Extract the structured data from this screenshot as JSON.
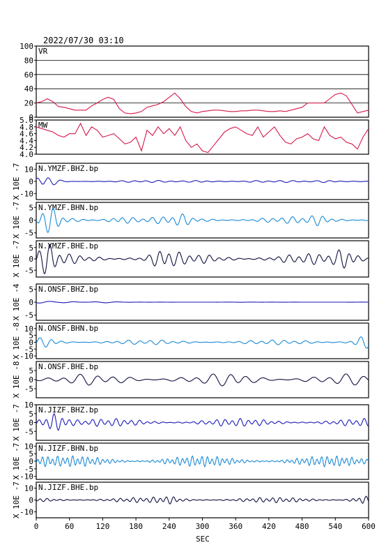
{
  "header": {
    "timestamp": "2022/07/30 03:10"
  },
  "colors": {
    "vr": "#d6184a",
    "mw": "#d6184a",
    "z_trace": "#1a1ab8",
    "h_trace": "#1a8ad6",
    "e_trace": "#101040",
    "axis": "#000000",
    "grid": "#000000"
  },
  "chart_data": {
    "type": "line",
    "xlabel": "SEC",
    "xlim": [
      0,
      600
    ],
    "x_ticks": [
      "0",
      "60",
      "120",
      "180",
      "240",
      "300",
      "360",
      "420",
      "480",
      "540",
      "600"
    ],
    "panels": [
      {
        "id": "vr",
        "label": "VR",
        "ylabel": "",
        "ylim": [
          0,
          100
        ],
        "y_ticks": [
          "0",
          "20",
          "40",
          "60",
          "80",
          "100"
        ],
        "grid": true,
        "color_key": "vr",
        "x": [
          0,
          10,
          20,
          30,
          40,
          50,
          60,
          70,
          80,
          90,
          100,
          110,
          120,
          130,
          140,
          150,
          160,
          170,
          180,
          190,
          200,
          210,
          220,
          230,
          240,
          250,
          260,
          270,
          280,
          290,
          300,
          310,
          320,
          330,
          340,
          350,
          360,
          370,
          380,
          390,
          400,
          410,
          420,
          430,
          440,
          450,
          460,
          470,
          480,
          490,
          500,
          510,
          520,
          530,
          540,
          550,
          560,
          570,
          580,
          590,
          600
        ],
        "values": [
          20,
          22,
          26,
          22,
          15,
          14,
          12,
          10,
          10,
          10,
          16,
          20,
          25,
          28,
          25,
          12,
          6,
          5,
          6,
          8,
          14,
          16,
          18,
          22,
          28,
          34,
          26,
          15,
          8,
          6,
          8,
          9,
          10,
          10,
          9,
          8,
          8,
          9,
          9,
          10,
          10,
          9,
          8,
          8,
          9,
          8,
          10,
          12,
          14,
          20,
          20,
          20,
          20,
          26,
          32,
          34,
          30,
          18,
          6,
          8,
          10
        ]
      },
      {
        "id": "mw",
        "label": "MW",
        "ylabel": "",
        "ylim": [
          4.0,
          5.0
        ],
        "y_ticks": [
          "4.0",
          "4.2",
          "4.4",
          "4.6",
          "4.8",
          "5.0"
        ],
        "grid": false,
        "color_key": "mw",
        "x": [
          0,
          10,
          20,
          30,
          40,
          50,
          60,
          70,
          80,
          90,
          100,
          110,
          120,
          130,
          140,
          150,
          160,
          170,
          180,
          190,
          200,
          210,
          220,
          230,
          240,
          250,
          260,
          270,
          280,
          290,
          300,
          310,
          320,
          330,
          340,
          350,
          360,
          370,
          380,
          390,
          400,
          410,
          420,
          430,
          440,
          450,
          460,
          470,
          480,
          490,
          500,
          510,
          520,
          530,
          540,
          550,
          560,
          570,
          580,
          590,
          600
        ],
        "values": [
          4.8,
          4.75,
          4.7,
          4.65,
          4.55,
          4.5,
          4.6,
          4.6,
          4.9,
          4.55,
          4.8,
          4.7,
          4.5,
          4.55,
          4.6,
          4.45,
          4.3,
          4.35,
          4.5,
          4.1,
          4.7,
          4.55,
          4.8,
          4.6,
          4.75,
          4.55,
          4.8,
          4.4,
          4.2,
          4.3,
          4.1,
          4.05,
          4.25,
          4.45,
          4.65,
          4.75,
          4.8,
          4.7,
          4.6,
          4.55,
          4.8,
          4.5,
          4.65,
          4.8,
          4.55,
          4.35,
          4.3,
          4.45,
          4.5,
          4.6,
          4.45,
          4.4,
          4.8,
          4.55,
          4.45,
          4.5,
          4.35,
          4.3,
          4.15,
          4.5,
          4.75
        ]
      },
      {
        "id": "ymzf_bhz",
        "label": "N.YMZF.BHZ.bp",
        "ylabel": "X 10E -7",
        "ylim": [
          -15,
          15
        ],
        "y_ticks": [
          "10",
          "0",
          "-10"
        ],
        "tick_values": [
          10,
          0,
          -10
        ],
        "grid": false,
        "color_key": "z_trace",
        "trace": {
          "base_amp": 0.8,
          "period_s": 22,
          "bursts": [
            [
              15,
              4.5
            ],
            [
              300,
              0.8
            ],
            [
              530,
              0.8
            ]
          ],
          "seed": 3
        }
      },
      {
        "id": "ymzf_bhn",
        "label": "N.YMZF.BHN.bp",
        "ylabel": "X 10E -7",
        "ylim": [
          -7,
          7
        ],
        "y_ticks": [
          "5",
          "0",
          "-5"
        ],
        "tick_values": [
          5,
          0,
          -5
        ],
        "grid": false,
        "color_key": "h_trace",
        "trace": {
          "base_amp": 1.2,
          "period_s": 18,
          "bursts": [
            [
              25,
              3.5
            ],
            [
              150,
              1.0
            ],
            [
              260,
              1.2
            ],
            [
              510,
              1.0
            ]
          ],
          "seed": 7
        }
      },
      {
        "id": "ymzf_bhe",
        "label": "N.YMZF.BHE.bp",
        "ylabel": "X 10E -7",
        "ylim": [
          -8,
          8
        ],
        "y_ticks": [
          "5",
          "0",
          "-5"
        ],
        "tick_values": [
          5,
          0,
          -5
        ],
        "grid": false,
        "color_key": "e_trace",
        "trace": {
          "base_amp": 2.2,
          "period_s": 18,
          "bursts": [
            [
              20,
              4.0
            ],
            [
              230,
              2.5
            ],
            [
              560,
              3.0
            ]
          ],
          "seed": 11
        }
      },
      {
        "id": "onsf_bhz",
        "label": "N.ONSF.BHZ.bp",
        "ylabel": "X 10E -4",
        "ylim": [
          -7,
          7
        ],
        "y_ticks": [
          "5",
          "0",
          "-5"
        ],
        "tick_values": [
          5,
          0,
          -5
        ],
        "grid": false,
        "color_key": "z_trace",
        "trace": {
          "base_amp": 0.05,
          "period_s": 40,
          "bursts": [
            [
              10,
              0.4
            ],
            [
              60,
              0.25
            ],
            [
              120,
              0.2
            ]
          ],
          "seed": 13
        }
      },
      {
        "id": "onsf_bhn",
        "label": "N.ONSF.BHN.bp",
        "ylabel": "X 10E -8",
        "ylim": [
          -12,
          14
        ],
        "y_ticks": [
          "10",
          "5",
          "0",
          "-5",
          "-10"
        ],
        "tick_values": [
          10,
          5,
          0,
          -5,
          -10
        ],
        "grid": false,
        "color_key": "h_trace",
        "trace": {
          "base_amp": 1.6,
          "period_s": 20,
          "bursts": [
            [
              20,
              2.5
            ],
            [
              590,
              3.5
            ]
          ],
          "seed": 17
        }
      },
      {
        "id": "onsf_bhe",
        "label": "N.ONSF.BHE.bp",
        "ylabel": "X 10E -8",
        "ylim": [
          -10,
          10
        ],
        "y_ticks": [
          "5",
          "0",
          "-5"
        ],
        "tick_values": [
          5,
          0,
          -5
        ],
        "grid": false,
        "color_key": "e_trace",
        "trace": {
          "base_amp": 2.8,
          "period_s": 30,
          "bursts": [
            [
              360,
              1.5
            ]
          ],
          "seed": 19
        }
      },
      {
        "id": "jizf_bhz",
        "label": "N.JIZF.BHZ.bp",
        "ylabel": "X 10E -7",
        "ylim": [
          -10,
          10
        ],
        "y_ticks": [
          "10",
          "5",
          "0",
          "-5"
        ],
        "tick_values": [
          10,
          5,
          0,
          -5
        ],
        "grid": false,
        "color_key": "z_trace",
        "trace": {
          "base_amp": 2.0,
          "period_s": 14,
          "bursts": [
            [
              20,
              2.0
            ],
            [
              40,
              3.0
            ]
          ],
          "seed": 23
        }
      },
      {
        "id": "jizf_bhn",
        "label": "N.JIZF.BHN.bp",
        "ylabel": "X 10E -7",
        "ylim": [
          -12,
          12
        ],
        "y_ticks": [
          "10",
          "5",
          "0",
          "-5",
          "-10"
        ],
        "tick_values": [
          10,
          5,
          0,
          -5,
          -10
        ],
        "grid": false,
        "color_key": "h_trace",
        "trace": {
          "base_amp": 3.2,
          "period_s": 9,
          "bursts": [
            [
              10,
              1.0
            ]
          ],
          "seed": 29
        }
      },
      {
        "id": "jizf_bhe",
        "label": "N.JIZF.BHE.bp",
        "ylabel": "X 10E -7",
        "ylim": [
          -15,
          15
        ],
        "y_ticks": [
          "10",
          "0",
          "-10"
        ],
        "tick_values": [
          10,
          0,
          -10
        ],
        "grid": false,
        "color_key": "e_trace",
        "trace": {
          "base_amp": 2.0,
          "period_s": 12,
          "bursts": [
            [
              240,
              1.5
            ],
            [
              590,
              2.0
            ]
          ],
          "seed": 31
        }
      }
    ]
  }
}
